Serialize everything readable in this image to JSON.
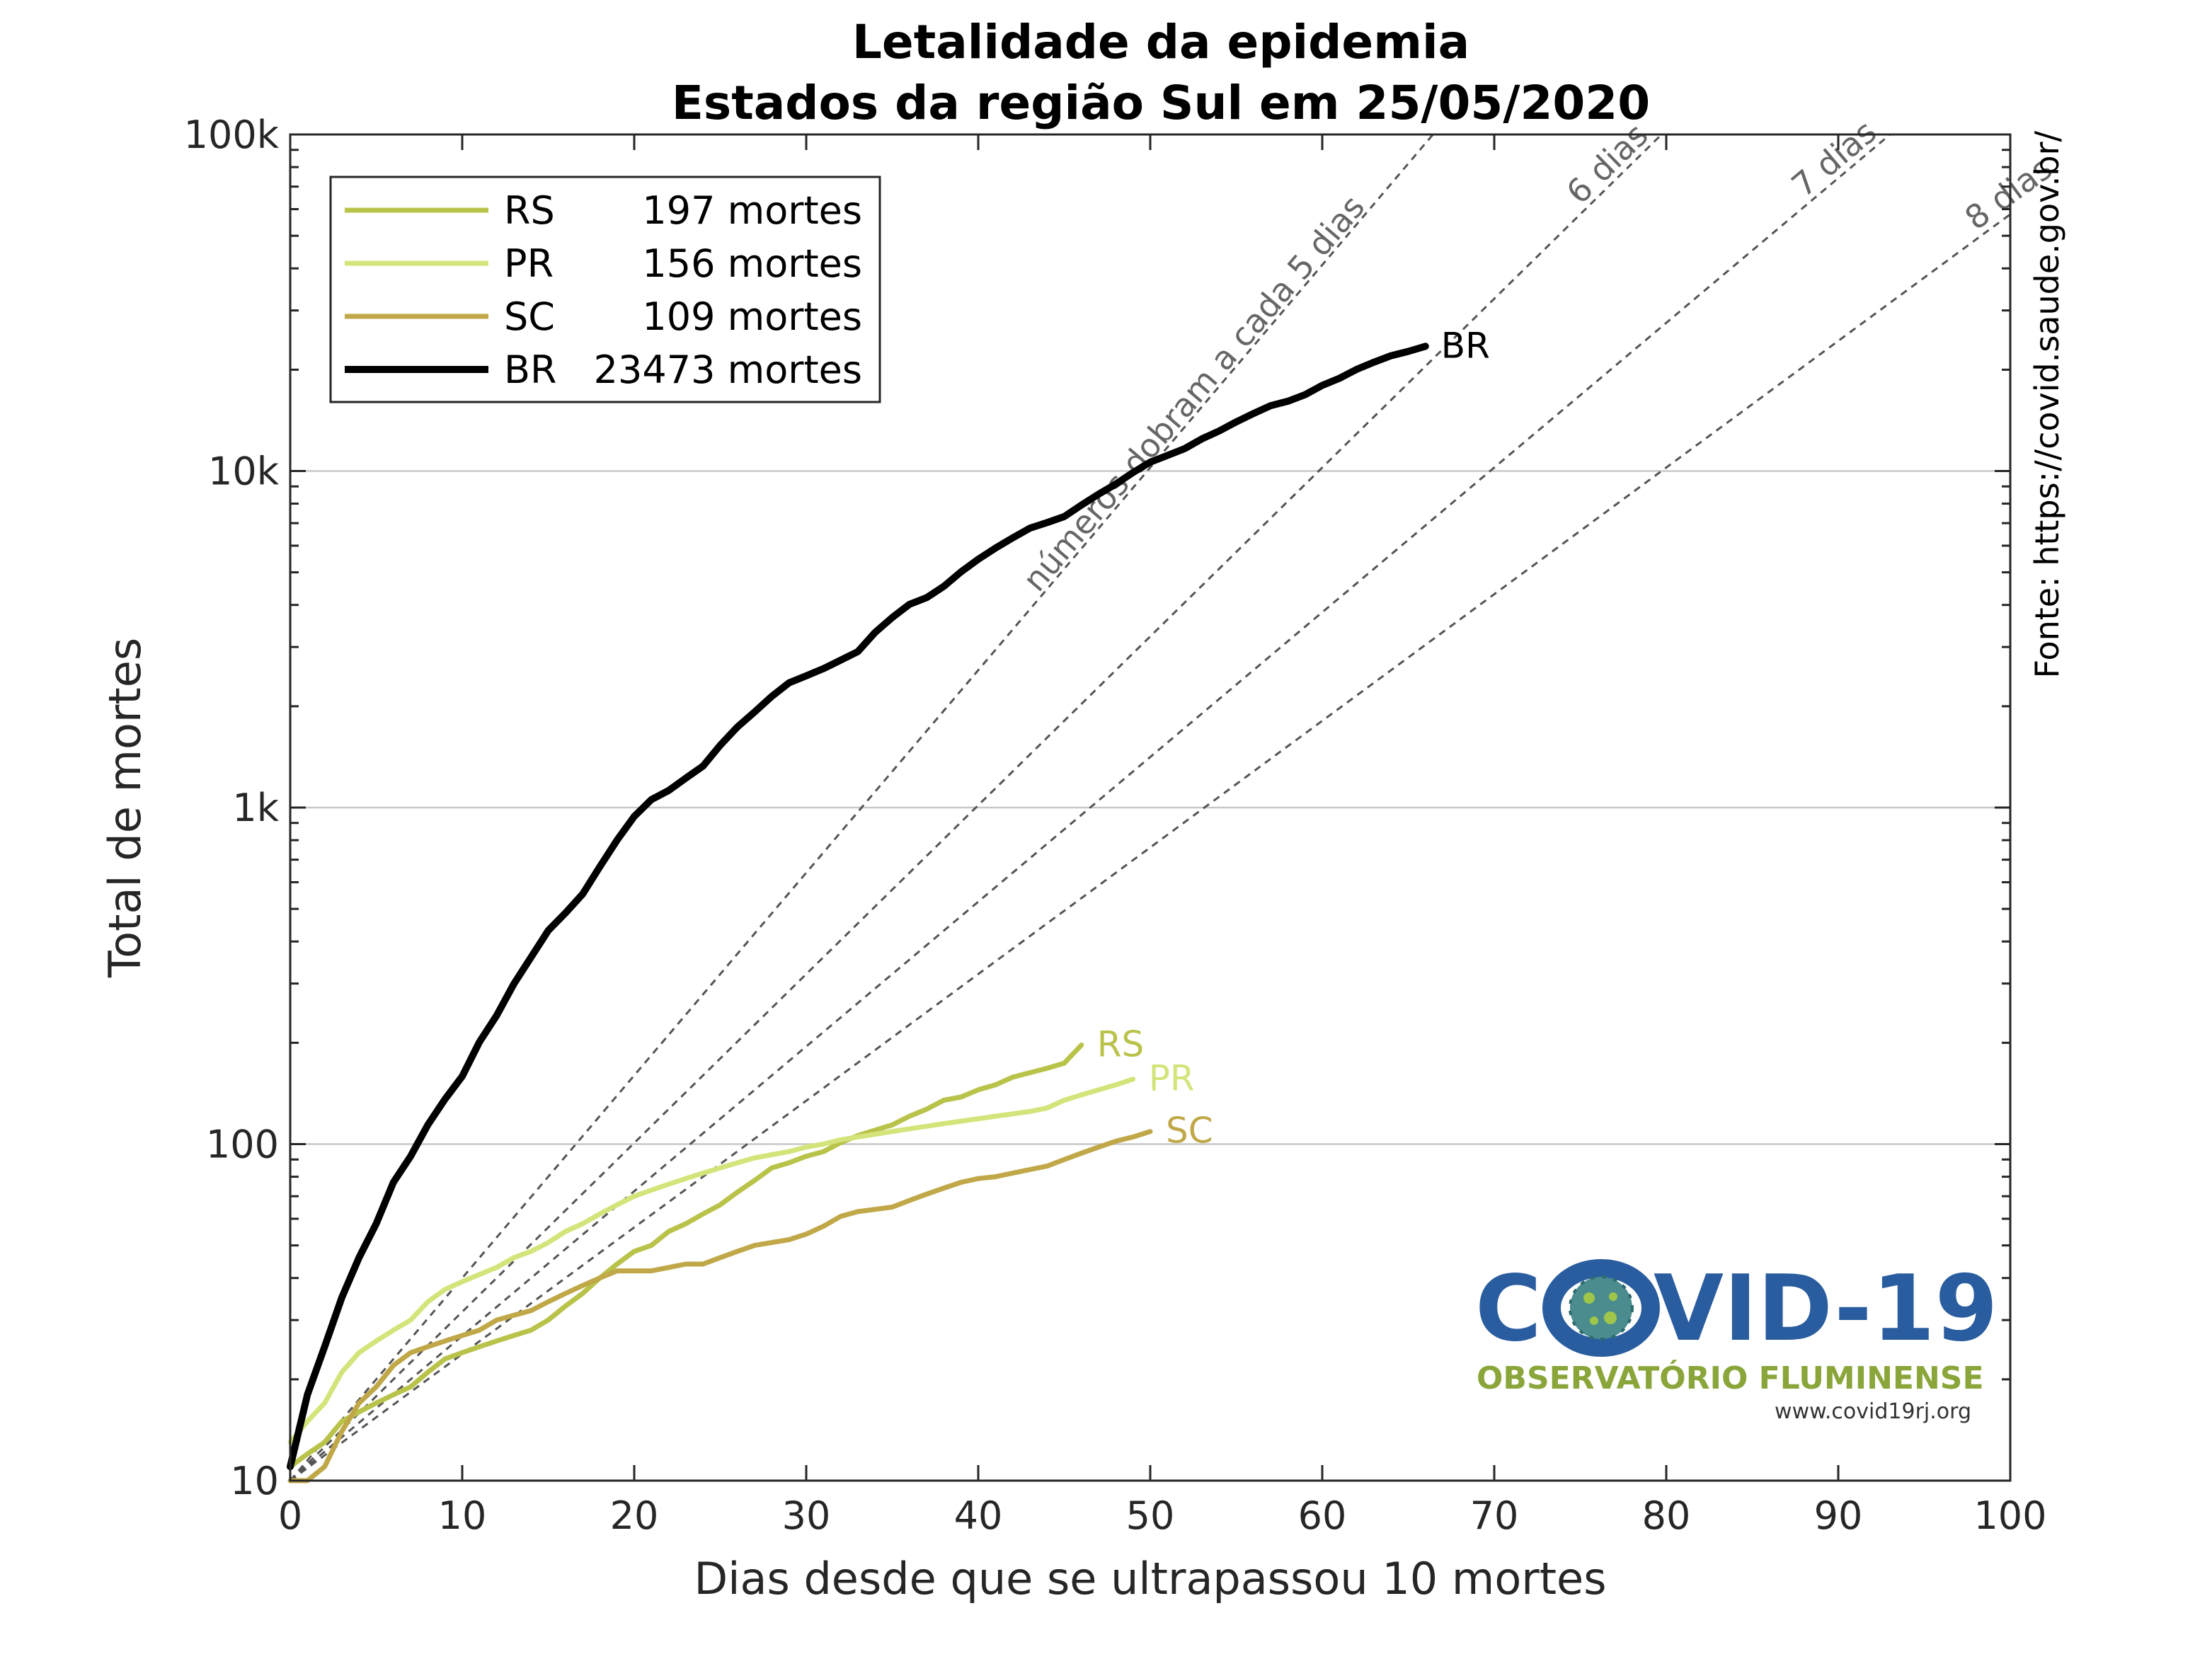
{
  "chart_data": {
    "type": "line",
    "title": "Letalidade da epidemia",
    "subtitle": "Estados da região Sul em 25/05/2020",
    "xlabel": "Dias desde que se ultrapassou 10 mortes",
    "ylabel": "Total de mortes",
    "xlim": [
      0,
      100
    ],
    "ylim": [
      10,
      100000
    ],
    "yscale": "log",
    "x_ticks": [
      "0",
      "10",
      "20",
      "30",
      "40",
      "50",
      "60",
      "70",
      "80",
      "90",
      "100"
    ],
    "y_ticks": [
      "10",
      "100",
      "1k",
      "10k",
      "100k"
    ],
    "grid": "horizontal at decades",
    "legend_position": "top-left",
    "source": "Fonte: https://covid.saude.gov.br/",
    "reference_lines": [
      {
        "label": "números dobram a cada 5 dias",
        "doubling_days": 5
      },
      {
        "label": "6 dias",
        "doubling_days": 6
      },
      {
        "label": "7 dias",
        "doubling_days": 7
      },
      {
        "label": "8 dias",
        "doubling_days": 8
      }
    ],
    "series": [
      {
        "name": "RS",
        "total_label": "197 mortes",
        "color": "#b9c249",
        "x": [
          0,
          1,
          2,
          3,
          4,
          5,
          6,
          7,
          8,
          9,
          10,
          11,
          12,
          13,
          14,
          15,
          16,
          17,
          18,
          19,
          20,
          21,
          22,
          23,
          24,
          25,
          26,
          27,
          28,
          29,
          30,
          31,
          32,
          33,
          34,
          35,
          36,
          37,
          38,
          39,
          40,
          41,
          42,
          43,
          44,
          45,
          46
        ],
        "y": [
          11,
          12,
          13,
          15,
          16,
          17,
          18,
          19,
          21,
          23,
          24,
          25,
          26,
          27,
          28,
          30,
          33,
          36,
          40,
          44,
          48,
          50,
          55,
          58,
          62,
          66,
          72,
          78,
          85,
          88,
          92,
          95,
          101,
          106,
          110,
          114,
          121,
          127,
          135,
          138,
          145,
          150,
          158,
          163,
          168,
          174,
          197
        ]
      },
      {
        "name": "PR",
        "total_label": "156 mortes",
        "color": "#d4e47a",
        "x": [
          0,
          1,
          2,
          3,
          4,
          5,
          6,
          7,
          8,
          9,
          10,
          11,
          12,
          13,
          14,
          15,
          16,
          17,
          18,
          19,
          20,
          21,
          22,
          23,
          24,
          25,
          26,
          27,
          28,
          29,
          30,
          31,
          32,
          33,
          34,
          35,
          36,
          37,
          38,
          39,
          40,
          41,
          42,
          43,
          44,
          45,
          46,
          47,
          48,
          49
        ],
        "y": [
          13,
          15,
          17,
          21,
          24,
          26,
          28,
          30,
          34,
          37,
          39,
          41,
          43,
          46,
          48,
          51,
          55,
          58,
          62,
          66,
          70,
          73,
          76,
          79,
          82,
          85,
          88,
          91,
          93,
          95,
          98,
          100,
          103,
          105,
          107,
          109,
          111,
          113,
          115,
          117,
          119,
          121,
          123,
          125,
          128,
          135,
          140,
          145,
          150,
          156
        ]
      },
      {
        "name": "SC",
        "total_label": "109 mortes",
        "color": "#c0a848",
        "x": [
          0,
          1,
          2,
          3,
          4,
          5,
          6,
          7,
          8,
          9,
          10,
          11,
          12,
          13,
          14,
          15,
          16,
          17,
          18,
          19,
          20,
          21,
          22,
          23,
          24,
          25,
          26,
          27,
          28,
          29,
          30,
          31,
          32,
          33,
          34,
          35,
          36,
          37,
          38,
          39,
          40,
          41,
          42,
          43,
          44,
          45,
          46,
          47,
          48,
          49,
          50
        ],
        "y": [
          10,
          10,
          11,
          14,
          17,
          19,
          22,
          24,
          25,
          26,
          27,
          28,
          30,
          31,
          32,
          34,
          36,
          38,
          40,
          42,
          42,
          42,
          43,
          44,
          44,
          46,
          48,
          50,
          51,
          52,
          54,
          57,
          61,
          63,
          64,
          65,
          68,
          71,
          74,
          77,
          79,
          80,
          82,
          84,
          86,
          90,
          94,
          98,
          102,
          105,
          109
        ]
      },
      {
        "name": "BR",
        "total_label": "23473 mortes",
        "color": "#000000",
        "x": [
          0,
          1,
          2,
          3,
          4,
          5,
          6,
          7,
          8,
          9,
          10,
          11,
          12,
          13,
          14,
          15,
          16,
          17,
          18,
          19,
          20,
          21,
          22,
          23,
          24,
          25,
          26,
          27,
          28,
          29,
          30,
          31,
          32,
          33,
          34,
          35,
          36,
          37,
          38,
          39,
          40,
          41,
          42,
          43,
          44,
          45,
          46,
          47,
          48,
          49,
          50,
          51,
          52,
          53,
          54,
          55,
          56,
          57,
          58,
          59,
          60,
          61,
          62,
          63,
          64,
          65,
          66
        ],
        "y": [
          11,
          18,
          25,
          35,
          46,
          58,
          77,
          92,
          114,
          136,
          159,
          201,
          241,
          299,
          359,
          431,
          486,
          553,
          667,
          800,
          941,
          1056,
          1124,
          1223,
          1328,
          1532,
          1736,
          1924,
          2141,
          2347,
          2462,
          2587,
          2741,
          2906,
          3313,
          3670,
          4016,
          4205,
          4543,
          5017,
          5466,
          5901,
          6329,
          6761,
          7025,
          7321,
          7921,
          8536,
          9146,
          9897,
          10627,
          11123,
          11653,
          12461,
          13149,
          13993,
          14817,
          15633,
          16118,
          16853,
          17971,
          18859,
          20047,
          21048,
          22013,
          22666,
          23473
        ]
      }
    ]
  }
}
